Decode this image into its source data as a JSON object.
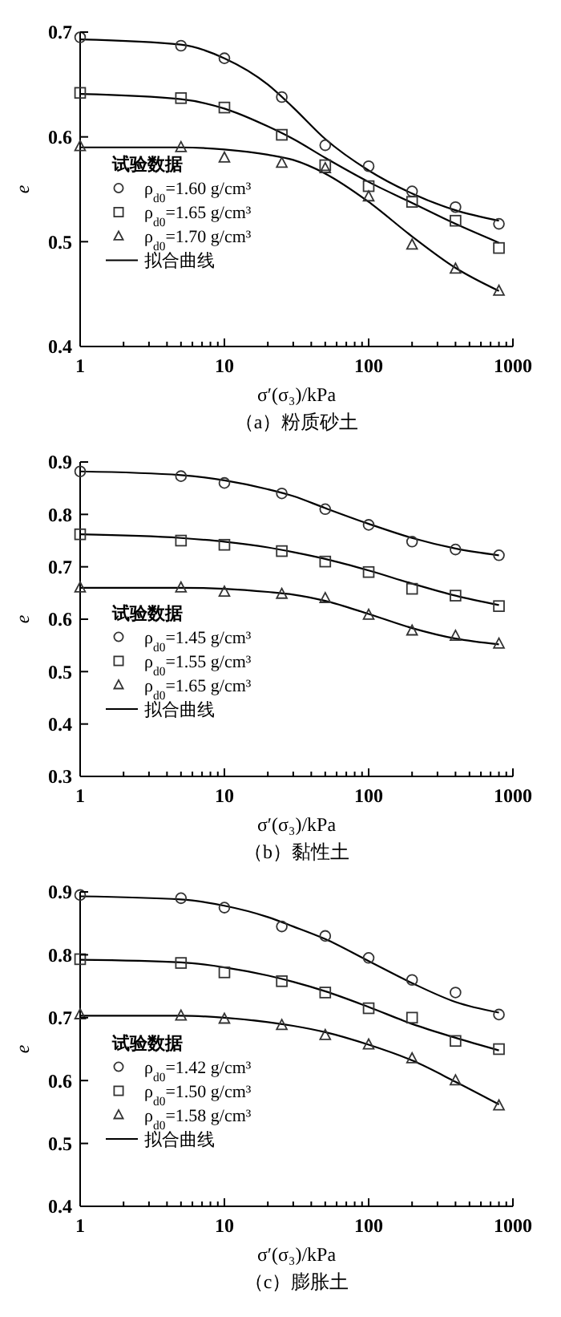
{
  "chart_data": [
    {
      "type": "scatter",
      "title": "（a）粉质砂土",
      "xlabel": "σ′(σ₃)/kPa",
      "ylabel": "e",
      "legend_title": "试验数据",
      "legend": "center left",
      "log": "x",
      "xlim": [
        1,
        1000
      ],
      "ylim": [
        0.4,
        0.7
      ],
      "yticks": [
        0.4,
        0.5,
        0.6,
        0.7
      ],
      "xticks": [
        1,
        {
          "value": 2,
          "label": null
        },
        {
          "value": 3,
          "label": null
        },
        {
          "value": 4,
          "label": null
        },
        {
          "value": 5,
          "label": null
        },
        {
          "value": 6,
          "label": null
        },
        {
          "value": 7,
          "label": null
        },
        {
          "value": 8,
          "label": null
        },
        {
          "value": 9,
          "label": null
        },
        10,
        {
          "value": 20,
          "label": null
        },
        {
          "value": 30,
          "label": null
        },
        {
          "value": 40,
          "label": null
        },
        {
          "value": 50,
          "label": null
        },
        {
          "value": 60,
          "label": null
        },
        {
          "value": 70,
          "label": null
        },
        {
          "value": 80,
          "label": null
        },
        {
          "value": 90,
          "label": null
        },
        100,
        {
          "value": 200,
          "label": null
        },
        {
          "value": 300,
          "label": null
        },
        {
          "value": 400,
          "label": null
        },
        {
          "value": 500,
          "label": null
        },
        {
          "value": 600,
          "label": null
        },
        {
          "value": 700,
          "label": null
        },
        {
          "value": 800,
          "label": null
        },
        {
          "value": 900,
          "label": null
        },
        1000
      ],
      "x": [
        1,
        5,
        10,
        25,
        50,
        100,
        200,
        400,
        800
      ],
      "series": [
        {
          "name": "ρ$_{d0}$=1.60 g/cm³",
          "marker": "circle",
          "color": "#333333",
          "values": [
            0.695,
            0.687,
            0.675,
            0.638,
            0.592,
            0.572,
            0.548,
            0.533,
            0.517
          ]
        },
        {
          "name": "ρ$_{d0}$=1.65 g/cm³",
          "marker": "square",
          "color": "#333333",
          "values": [
            0.642,
            0.637,
            0.628,
            0.602,
            0.573,
            0.553,
            0.538,
            0.52,
            0.494
          ]
        },
        {
          "name": "ρ$_{d0}$=1.70 g/cm³",
          "marker": "triangle",
          "color": "#333333",
          "values": [
            0.591,
            0.59,
            0.58,
            0.575,
            0.57,
            0.543,
            0.497,
            0.474,
            0.453
          ]
        },
        {
          "name": "拟合曲线",
          "type": "line",
          "color": "#000000",
          "x": [
            1,
            5,
            10,
            20,
            30,
            50,
            100,
            200,
            400,
            800
          ],
          "values": [
            0.693,
            0.688,
            0.675,
            0.65,
            0.628,
            0.598,
            0.568,
            0.546,
            0.53,
            0.52
          ]
        },
        {
          "type": "line",
          "color": "#000000",
          "x": [
            1,
            5,
            10,
            20,
            30,
            50,
            100,
            200,
            400,
            800
          ],
          "values": [
            0.641,
            0.636,
            0.627,
            0.61,
            0.598,
            0.58,
            0.557,
            0.537,
            0.517,
            0.499
          ]
        },
        {
          "type": "line",
          "color": "#000000",
          "x": [
            1,
            5,
            10,
            20,
            30,
            50,
            100,
            200,
            400,
            800
          ],
          "values": [
            0.59,
            0.59,
            0.588,
            0.583,
            0.578,
            0.565,
            0.538,
            0.505,
            0.475,
            0.453
          ]
        }
      ]
    },
    {
      "type": "scatter",
      "title": "（b）黏性土",
      "xlabel": "σ′(σ₃)/kPa",
      "ylabel": "e",
      "legend_title": "试验数据",
      "legend": "bottom left",
      "log": "x",
      "xlim": [
        1,
        1000
      ],
      "ylim": [
        0.3,
        0.9
      ],
      "yticks": [
        0.3,
        0.4,
        0.5,
        0.6,
        0.7,
        0.8,
        0.9
      ],
      "xticks": [
        1,
        {
          "value": 2,
          "label": null
        },
        {
          "value": 3,
          "label": null
        },
        {
          "value": 4,
          "label": null
        },
        {
          "value": 5,
          "label": null
        },
        {
          "value": 6,
          "label": null
        },
        {
          "value": 7,
          "label": null
        },
        {
          "value": 8,
          "label": null
        },
        {
          "value": 9,
          "label": null
        },
        10,
        {
          "value": 20,
          "label": null
        },
        {
          "value": 30,
          "label": null
        },
        {
          "value": 40,
          "label": null
        },
        {
          "value": 50,
          "label": null
        },
        {
          "value": 60,
          "label": null
        },
        {
          "value": 70,
          "label": null
        },
        {
          "value": 80,
          "label": null
        },
        {
          "value": 90,
          "label": null
        },
        100,
        {
          "value": 200,
          "label": null
        },
        {
          "value": 300,
          "label": null
        },
        {
          "value": 400,
          "label": null
        },
        {
          "value": 500,
          "label": null
        },
        {
          "value": 600,
          "label": null
        },
        {
          "value": 700,
          "label": null
        },
        {
          "value": 800,
          "label": null
        },
        {
          "value": 900,
          "label": null
        },
        1000
      ],
      "x": [
        1,
        5,
        10,
        25,
        50,
        100,
        200,
        400,
        800
      ],
      "series": [
        {
          "name": "ρ$_{d0}$=1.45 g/cm³",
          "marker": "circle",
          "color": "#333333",
          "values": [
            0.882,
            0.873,
            0.86,
            0.84,
            0.81,
            0.78,
            0.748,
            0.733,
            0.722
          ]
        },
        {
          "name": "ρ$_{d0}$=1.55 g/cm³",
          "marker": "square",
          "color": "#333333",
          "values": [
            0.762,
            0.75,
            0.742,
            0.73,
            0.71,
            0.69,
            0.658,
            0.645,
            0.625
          ]
        },
        {
          "name": "ρ$_{d0}$=1.65 g/cm³",
          "marker": "triangle",
          "color": "#333333",
          "values": [
            0.66,
            0.66,
            0.652,
            0.648,
            0.64,
            0.608,
            0.578,
            0.568,
            0.553
          ]
        },
        {
          "name": "拟合曲线",
          "type": "line",
          "color": "#000000",
          "x": [
            1,
            5,
            10,
            20,
            30,
            50,
            100,
            200,
            400,
            800
          ],
          "values": [
            0.882,
            0.875,
            0.865,
            0.848,
            0.835,
            0.812,
            0.782,
            0.755,
            0.735,
            0.722
          ]
        },
        {
          "type": "line",
          "color": "#000000",
          "x": [
            1,
            5,
            10,
            20,
            30,
            50,
            100,
            200,
            400,
            800
          ],
          "values": [
            0.762,
            0.755,
            0.748,
            0.737,
            0.728,
            0.715,
            0.693,
            0.668,
            0.645,
            0.627
          ]
        },
        {
          "type": "line",
          "color": "#000000",
          "x": [
            1,
            5,
            10,
            20,
            30,
            50,
            100,
            200,
            400,
            800
          ],
          "values": [
            0.66,
            0.66,
            0.658,
            0.652,
            0.647,
            0.635,
            0.61,
            0.583,
            0.563,
            0.552
          ]
        }
      ]
    },
    {
      "type": "scatter",
      "title": "（c）膨胀土",
      "xlabel": "σ′(σ₃)/kPa",
      "ylabel": "e",
      "legend_title": "试验数据",
      "legend": "bottom left",
      "log": "x",
      "xlim": [
        1,
        1000
      ],
      "ylim": [
        0.4,
        0.9
      ],
      "yticks": [
        0.4,
        0.5,
        0.6,
        0.7,
        0.8,
        0.9
      ],
      "xticks": [
        1,
        {
          "value": 2,
          "label": null
        },
        {
          "value": 3,
          "label": null
        },
        {
          "value": 4,
          "label": null
        },
        {
          "value": 5,
          "label": null
        },
        {
          "value": 6,
          "label": null
        },
        {
          "value": 7,
          "label": null
        },
        {
          "value": 8,
          "label": null
        },
        {
          "value": 9,
          "label": null
        },
        10,
        {
          "value": 20,
          "label": null
        },
        {
          "value": 30,
          "label": null
        },
        {
          "value": 40,
          "label": null
        },
        {
          "value": 50,
          "label": null
        },
        {
          "value": 60,
          "label": null
        },
        {
          "value": 70,
          "label": null
        },
        {
          "value": 80,
          "label": null
        },
        {
          "value": 90,
          "label": null
        },
        100,
        {
          "value": 200,
          "label": null
        },
        {
          "value": 300,
          "label": null
        },
        {
          "value": 400,
          "label": null
        },
        {
          "value": 500,
          "label": null
        },
        {
          "value": 600,
          "label": null
        },
        {
          "value": 700,
          "label": null
        },
        {
          "value": 800,
          "label": null
        },
        {
          "value": 900,
          "label": null
        },
        1000
      ],
      "x": [
        1,
        5,
        10,
        25,
        50,
        100,
        200,
        400,
        800
      ],
      "series": [
        {
          "name": "ρ$_{d0}$=1.42 g/cm³",
          "marker": "circle",
          "color": "#333333",
          "values": [
            0.895,
            0.89,
            0.875,
            0.845,
            0.83,
            0.795,
            0.76,
            0.74,
            0.705
          ]
        },
        {
          "name": "ρ$_{d0}$=1.50 g/cm³",
          "marker": "square",
          "color": "#333333",
          "values": [
            0.793,
            0.787,
            0.772,
            0.758,
            0.74,
            0.715,
            0.7,
            0.663,
            0.65
          ]
        },
        {
          "name": "ρ$_{d0}$=1.58 g/cm³",
          "marker": "triangle",
          "color": "#333333",
          "values": [
            0.705,
            0.703,
            0.698,
            0.688,
            0.672,
            0.657,
            0.635,
            0.6,
            0.56
          ]
        },
        {
          "name": "拟合曲线",
          "type": "line",
          "color": "#000000",
          "x": [
            1,
            5,
            10,
            20,
            30,
            50,
            100,
            200,
            400,
            800
          ],
          "values": [
            0.893,
            0.888,
            0.878,
            0.86,
            0.845,
            0.825,
            0.79,
            0.755,
            0.725,
            0.708
          ]
        },
        {
          "type": "line",
          "color": "#000000",
          "x": [
            1,
            5,
            10,
            20,
            30,
            50,
            100,
            200,
            400,
            800
          ],
          "values": [
            0.792,
            0.788,
            0.78,
            0.767,
            0.757,
            0.742,
            0.717,
            0.69,
            0.668,
            0.648
          ]
        },
        {
          "type": "line",
          "color": "#000000",
          "x": [
            1,
            5,
            10,
            20,
            30,
            50,
            100,
            200,
            400,
            800
          ],
          "values": [
            0.703,
            0.703,
            0.7,
            0.693,
            0.687,
            0.677,
            0.657,
            0.632,
            0.598,
            0.562
          ]
        }
      ]
    }
  ]
}
